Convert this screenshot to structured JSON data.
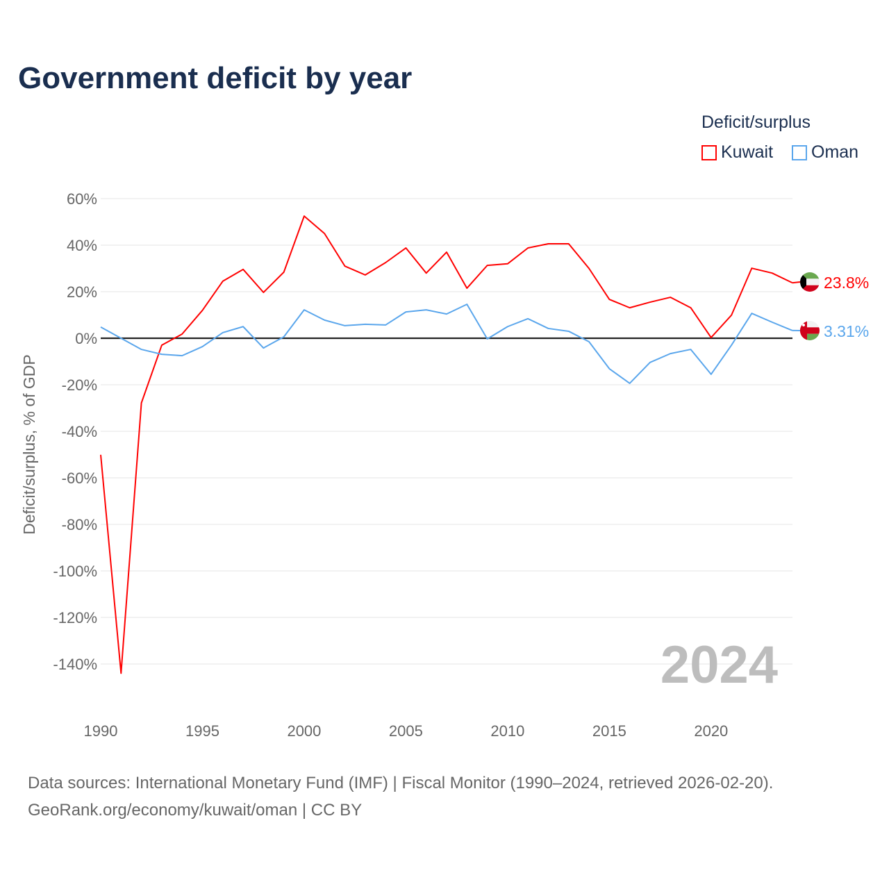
{
  "chart_data": {
    "type": "line",
    "title": "Government deficit by year",
    "ylabel": "Deficit/surplus, % of GDP",
    "xlabel": "",
    "legend_title": "Deficit/surplus",
    "legend_position": "top-right",
    "ylim": [
      -150,
      60
    ],
    "yticks": [
      60,
      40,
      20,
      0,
      -20,
      -40,
      -60,
      -80,
      -100,
      -120,
      -140
    ],
    "ytick_labels": [
      "60%",
      "40%",
      "20%",
      "0%",
      "-20%",
      "-40%",
      "-60%",
      "-80%",
      "-100%",
      "-120%",
      "-140%"
    ],
    "xticks": [
      1990,
      1995,
      2000,
      2005,
      2010,
      2015,
      2020
    ],
    "xtick_labels": [
      "1990",
      "1995",
      "2000",
      "2005",
      "2010",
      "2015",
      "2020"
    ],
    "grid": true,
    "year_label": "2024",
    "x": [
      1990,
      1991,
      1992,
      1993,
      1994,
      1995,
      1996,
      1997,
      1998,
      1999,
      2000,
      2001,
      2002,
      2003,
      2004,
      2005,
      2006,
      2007,
      2008,
      2009,
      2010,
      2011,
      2012,
      2013,
      2014,
      2015,
      2016,
      2017,
      2018,
      2019,
      2020,
      2021,
      2022,
      2023,
      2024
    ],
    "series": [
      {
        "name": "Kuwait",
        "color": "#ff0000",
        "end_label": "23.8%",
        "values": [
          -50.1,
          -144,
          -27.8,
          -3,
          1.8,
          12,
          24.5,
          29.6,
          19.7,
          28.4,
          52.5,
          45,
          31,
          27.2,
          32.5,
          38.8,
          28,
          37,
          21.5,
          31.3,
          32,
          38.8,
          40.6,
          40.6,
          30,
          16.7,
          13.1,
          15.5,
          17.6,
          13.1,
          0.3,
          9.9,
          30.1,
          28,
          23.8
        ]
      },
      {
        "name": "Oman",
        "color": "#5aa6ec",
        "end_label": "3.31%",
        "values": [
          4.8,
          0,
          -4.8,
          -6.9,
          -7.5,
          -3.6,
          2.4,
          5,
          -4.2,
          0.6,
          12.2,
          7.8,
          5.4,
          6,
          5.7,
          11.3,
          12.2,
          10.4,
          14.6,
          -0.3,
          5,
          8.4,
          4.2,
          3,
          -1.5,
          -13.1,
          -19.4,
          -10.4,
          -6.6,
          -4.8,
          -15.5,
          -3,
          10.7,
          6.9,
          3.31
        ]
      }
    ]
  },
  "source_line1": "Data sources: International Monetary Fund (IMF) | Fiscal Monitor (1990–2024, retrieved 2026-02-20).",
  "source_line2": "GeoRank.org/economy/kuwait/oman | CC BY"
}
